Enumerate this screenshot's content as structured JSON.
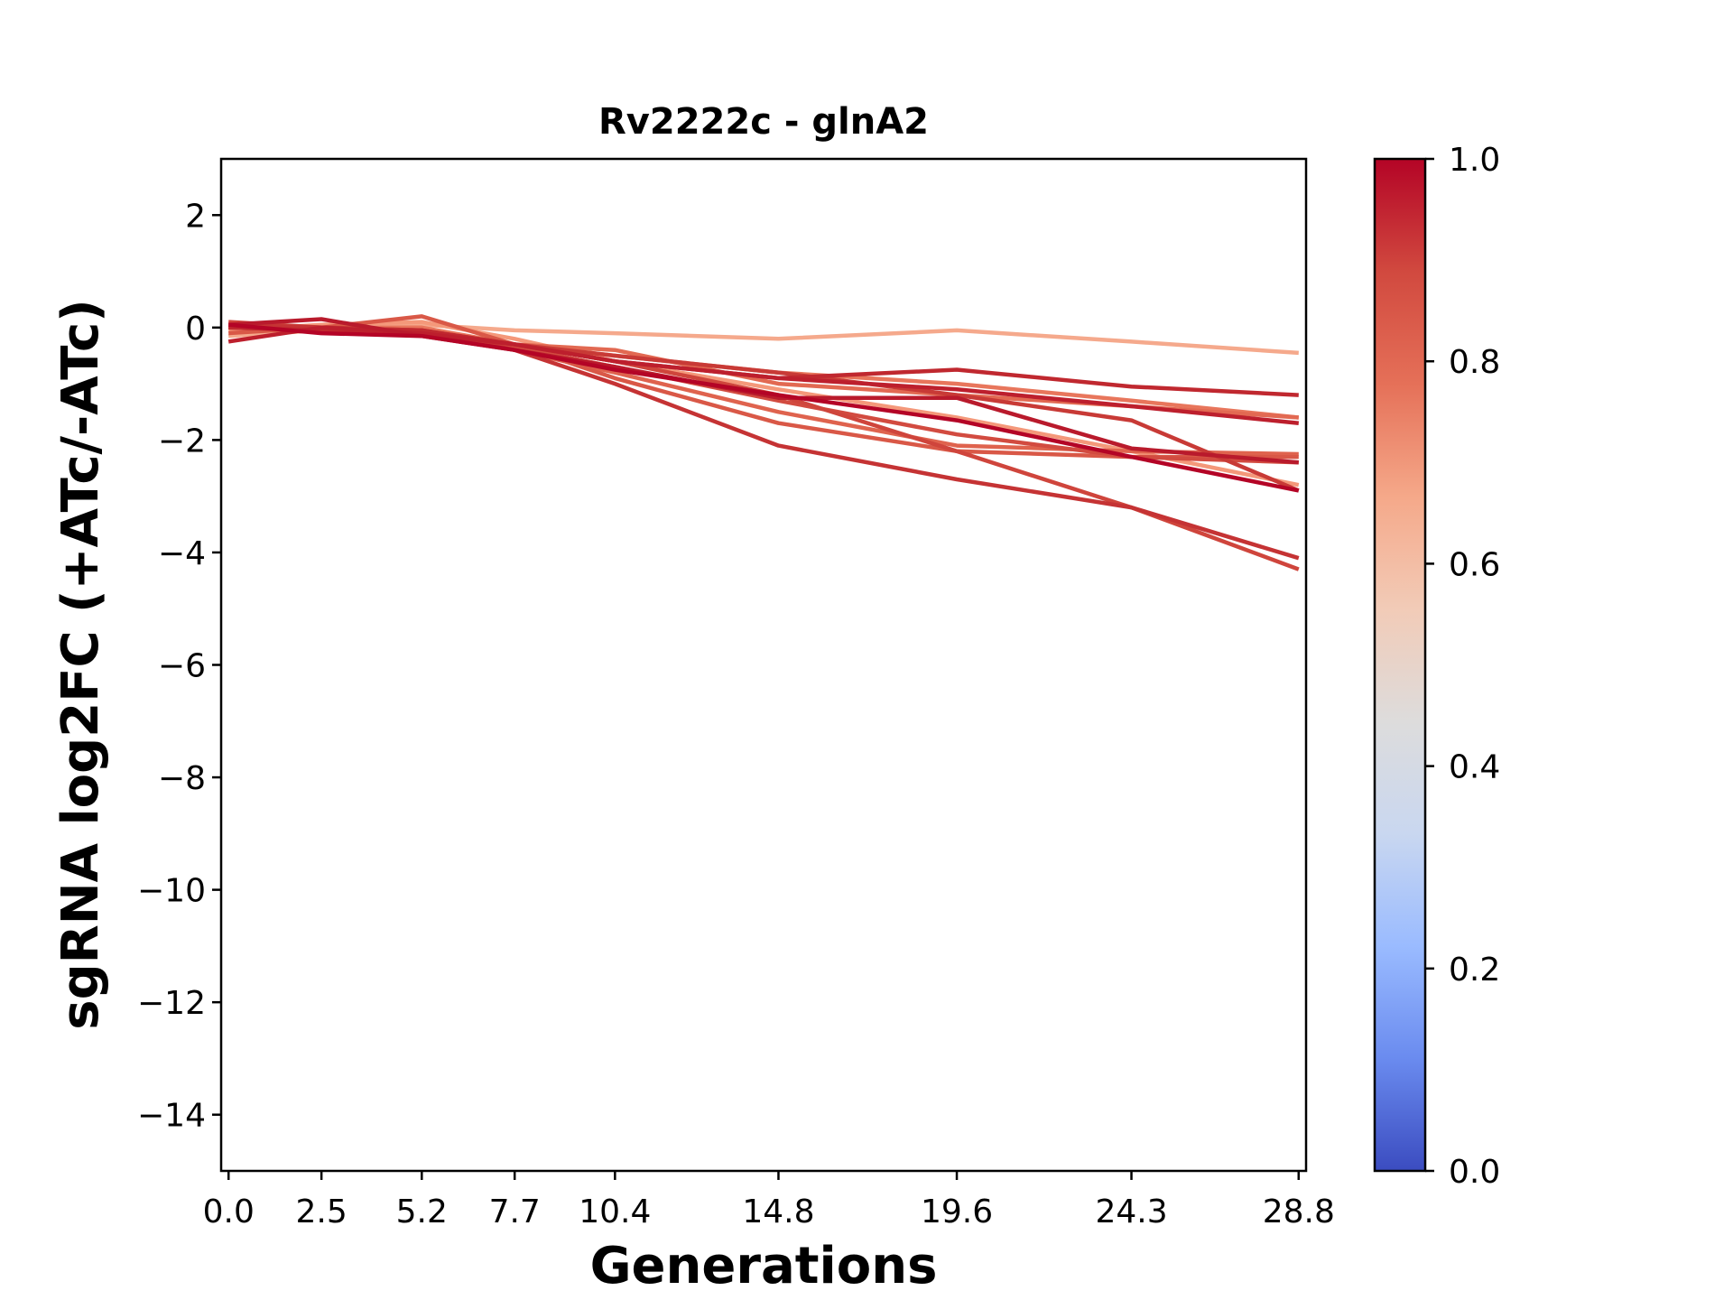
{
  "chart_data": {
    "type": "line",
    "title": "Rv2222c - glnA2",
    "xlabel": "Generations",
    "ylabel": "sgRNA log2FC (+ATc/-ATc)",
    "x": [
      0.0,
      2.5,
      5.2,
      7.7,
      10.4,
      14.8,
      19.6,
      24.3,
      28.8
    ],
    "x_tick_labels": [
      "0.0",
      "2.5",
      "5.2",
      "7.7",
      "10.4",
      "14.8",
      "19.6",
      "24.3",
      "28.8"
    ],
    "xlim": [
      -0.2,
      29.0
    ],
    "ylim": [
      -15,
      3
    ],
    "y_ticks": [
      2,
      0,
      -2,
      -4,
      -6,
      -8,
      -10,
      -12,
      -14
    ],
    "y_tick_labels": [
      "2",
      "0",
      "−2",
      "−4",
      "−6",
      "−8",
      "−10",
      "−12",
      "−14"
    ],
    "grid": false,
    "legend": false,
    "colorbar": {
      "colormap": "coolwarm",
      "range": [
        0.0,
        1.0
      ],
      "ticks": [
        0.0,
        0.2,
        0.4,
        0.6,
        0.8,
        1.0
      ],
      "tick_labels": [
        "0.0",
        "0.2",
        "0.4",
        "0.6",
        "0.8",
        "1.0"
      ],
      "color_stops": [
        "#3b4cc0",
        "#6a8bef",
        "#9abbff",
        "#c9d7f0",
        "#dddcdc",
        "#f2cbb7",
        "#f5a889",
        "#e57058",
        "#d1493f",
        "#b40426"
      ]
    },
    "series": [
      {
        "score": 0.7,
        "color": "#f5a98c",
        "values": [
          -0.15,
          -0.05,
          0.05,
          -0.05,
          -0.1,
          -0.2,
          -0.05,
          -0.25,
          -0.45
        ]
      },
      {
        "score": 0.72,
        "color": "#f4987a",
        "values": [
          -0.05,
          0.05,
          0.1,
          -0.2,
          -0.6,
          -1.1,
          -1.6,
          -2.2,
          -2.8
        ]
      },
      {
        "score": 0.82,
        "color": "#e8765c",
        "values": [
          0.0,
          0.0,
          0.0,
          -0.3,
          -0.5,
          -0.8,
          -1.0,
          -1.3,
          -1.6
        ]
      },
      {
        "score": 0.85,
        "color": "#e26952",
        "values": [
          0.05,
          0.0,
          -0.05,
          -0.3,
          -0.4,
          -1.0,
          -1.2,
          -1.4,
          -1.6
        ]
      },
      {
        "score": 0.86,
        "color": "#df634e",
        "values": [
          0.0,
          0.0,
          -0.1,
          -0.4,
          -0.8,
          -1.5,
          -2.1,
          -2.2,
          -2.25
        ]
      },
      {
        "score": 0.88,
        "color": "#d95847",
        "values": [
          -0.1,
          0.0,
          0.2,
          -0.3,
          -0.9,
          -1.7,
          -2.2,
          -2.3,
          -2.3
        ]
      },
      {
        "score": 0.9,
        "color": "#d24b40",
        "values": [
          0.0,
          -0.05,
          -0.1,
          -0.35,
          -0.7,
          -1.3,
          -1.9,
          -2.3,
          -2.4
        ]
      },
      {
        "score": 0.91,
        "color": "#cf453c",
        "values": [
          0.1,
          0.0,
          -0.1,
          -0.3,
          -0.6,
          -1.2,
          -2.2,
          -3.2,
          -4.3
        ]
      },
      {
        "score": 0.92,
        "color": "#c83a36",
        "values": [
          0.0,
          0.0,
          -0.05,
          -0.3,
          -0.5,
          -0.8,
          -1.2,
          -1.65,
          -2.9
        ]
      },
      {
        "score": 0.93,
        "color": "#c53334",
        "values": [
          0.05,
          0.0,
          -0.05,
          -0.4,
          -1.0,
          -2.1,
          -2.7,
          -3.2,
          -4.1
        ]
      },
      {
        "score": 0.94,
        "color": "#c0282f",
        "values": [
          0.0,
          -0.05,
          -0.05,
          -0.3,
          -0.6,
          -0.9,
          -0.75,
          -1.05,
          -1.2
        ]
      },
      {
        "score": 0.95,
        "color": "#bd1f2d",
        "values": [
          -0.25,
          0.0,
          -0.1,
          -0.3,
          -0.6,
          -0.9,
          -1.1,
          -1.4,
          -1.7
        ]
      },
      {
        "score": 0.96,
        "color": "#b91a2c",
        "values": [
          0.05,
          0.15,
          -0.15,
          -0.4,
          -0.7,
          -1.25,
          -1.25,
          -2.15,
          -2.4
        ]
      },
      {
        "score": 0.98,
        "color": "#b40426",
        "values": [
          0.05,
          -0.1,
          -0.15,
          -0.4,
          -0.75,
          -1.2,
          -1.65,
          -2.3,
          -2.9
        ]
      }
    ]
  }
}
